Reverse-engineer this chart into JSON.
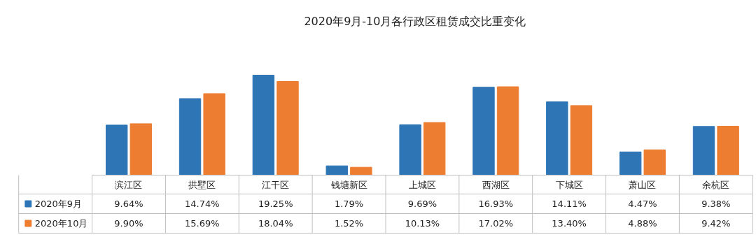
{
  "chart_data": {
    "type": "bar",
    "title": "2020年9月-10月各行政区租赁成交比重变化",
    "categories": [
      "滨江区",
      "拱墅区",
      "江干区",
      "钱塘新区",
      "上城区",
      "西湖区",
      "下城区",
      "萧山区",
      "余杭区"
    ],
    "series": [
      {
        "name": "2020年9月",
        "color": "#2e75b6",
        "values": [
          9.64,
          14.74,
          19.25,
          1.79,
          9.69,
          16.93,
          14.11,
          4.47,
          9.38
        ],
        "value_labels": [
          "9.64%",
          "14.74%",
          "19.25%",
          "1.79%",
          "9.69%",
          "16.93%",
          "14.11%",
          "4.47%",
          "9.38%"
        ]
      },
      {
        "name": "2020年10月",
        "color": "#ed7d31",
        "values": [
          9.9,
          15.69,
          18.04,
          1.52,
          10.13,
          17.02,
          13.4,
          4.88,
          9.42
        ],
        "value_labels": [
          "9.90%",
          "15.69%",
          "18.04%",
          "1.52%",
          "10.13%",
          "17.02%",
          "13.40%",
          "4.88%",
          "9.42%"
        ]
      }
    ],
    "legend": "bottom",
    "grid": false
  }
}
